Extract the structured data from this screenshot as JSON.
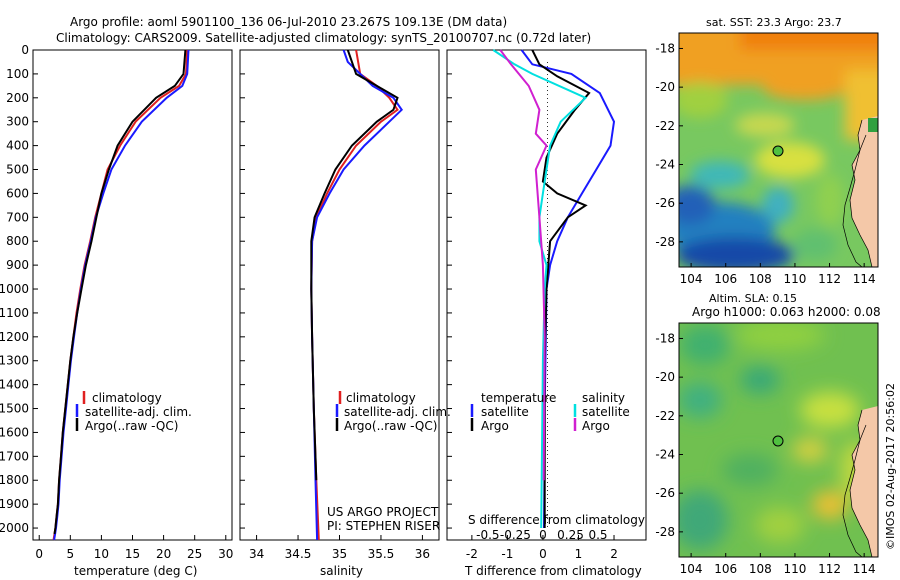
{
  "header": {
    "title_line1": "Argo profile: aoml 5901100_136 06-Jul-2010 23.267S 109.13E (DM data)",
    "title_line2": "Climatology: CARS2009. Satellite-adjusted climatology: synTS_20100707.nc (0.72d later)"
  },
  "colors": {
    "climatology": "#e02020",
    "satellite": "#1a1aff",
    "argo": "#000000",
    "sal_satellite": "#00e0e0",
    "sal_argo": "#d020d0"
  },
  "chart_data": [
    {
      "type": "line",
      "name": "temperature-profile",
      "xlabel": "temperature (deg C)",
      "ylabel": "",
      "xlim": [
        -1,
        31
      ],
      "ylim": [
        2050,
        0
      ],
      "xticks": [
        0,
        5,
        10,
        15,
        20,
        25,
        30
      ],
      "yticks": [
        0,
        100,
        200,
        300,
        400,
        500,
        600,
        700,
        800,
        900,
        1000,
        1100,
        1200,
        1300,
        1400,
        1500,
        1600,
        1700,
        1800,
        1900,
        2000
      ],
      "legend": {
        "placement": "bottom-center",
        "entries": [
          "climatology",
          "satellite-adj. clim.",
          "Argo(..raw -QC)"
        ]
      },
      "series": [
        {
          "name": "climatology",
          "color": "#e02020",
          "x": [
            23.8,
            23.6,
            22.5,
            19.5,
            15.5,
            13.0,
            11.0,
            10.0,
            9.0,
            8.2,
            7.3,
            6.6,
            6.0,
            5.5,
            5.0,
            4.6,
            4.2,
            3.8,
            3.5,
            3.2,
            3.0,
            2.8,
            2.6,
            2.45,
            2.3
          ],
          "y": [
            0,
            100,
            150,
            200,
            300,
            400,
            500,
            600,
            700,
            800,
            900,
            1000,
            1100,
            1200,
            1300,
            1400,
            1500,
            1600,
            1700,
            1800,
            1900,
            1950,
            2000,
            2025,
            2050
          ]
        },
        {
          "name": "satellite-adj. clim.",
          "color": "#1a1aff",
          "x": [
            24.0,
            23.8,
            23.0,
            20.5,
            16.5,
            13.8,
            11.6,
            10.3,
            9.1,
            8.3,
            7.4,
            6.7,
            6.1,
            5.6,
            5.1,
            4.7,
            4.3,
            3.9,
            3.6,
            3.3,
            3.1,
            2.9,
            2.7,
            2.55,
            2.4
          ],
          "y": [
            0,
            100,
            150,
            200,
            300,
            400,
            500,
            600,
            700,
            800,
            900,
            1000,
            1100,
            1200,
            1300,
            1400,
            1500,
            1600,
            1700,
            1800,
            1900,
            1950,
            2000,
            2025,
            2050
          ]
        },
        {
          "name": "Argo(..raw -QC)",
          "color": "#000000",
          "x": [
            23.5,
            23.2,
            21.8,
            18.8,
            15.0,
            12.6,
            11.2,
            10.0,
            9.2,
            8.4,
            7.5,
            6.8,
            6.1,
            5.5,
            5.0,
            4.6,
            4.2,
            3.8,
            3.5,
            3.2,
            3.0,
            2.8,
            2.6,
            2.45
          ],
          "y": [
            0,
            100,
            150,
            200,
            300,
            400,
            500,
            600,
            700,
            800,
            900,
            1000,
            1100,
            1200,
            1300,
            1400,
            1500,
            1600,
            1700,
            1800,
            1900,
            1950,
            2000,
            2025
          ]
        }
      ]
    },
    {
      "type": "line",
      "name": "salinity-profile",
      "xlabel": "salinity",
      "ylabel": "",
      "xlim": [
        33.8,
        36.2
      ],
      "ylim": [
        2050,
        0
      ],
      "xticks": [
        34,
        34.5,
        35,
        35.5,
        36
      ],
      "xtick_labels": [
        "34",
        "34.5",
        "35",
        "35.5",
        "36"
      ],
      "legend": {
        "placement": "bottom-center",
        "entries": [
          "climatology",
          "satellite-adj. clim.",
          "Argo(..raw -QC)"
        ]
      },
      "annotation": [
        "US ARGO PROJECT",
        "PI: STEPHEN RISER"
      ],
      "series": [
        {
          "name": "climatology",
          "color": "#e02020",
          "x": [
            35.2,
            35.25,
            35.45,
            35.6,
            35.7,
            35.5,
            35.2,
            35.0,
            34.85,
            34.72,
            34.67,
            34.66,
            34.67,
            34.69,
            34.72,
            34.75
          ],
          "y": [
            0,
            100,
            150,
            200,
            250,
            300,
            400,
            500,
            600,
            700,
            800,
            1000,
            1200,
            1500,
            1800,
            2050
          ]
        },
        {
          "name": "satellite-adj. clim.",
          "color": "#1a1aff",
          "x": [
            35.05,
            35.1,
            35.4,
            35.65,
            35.75,
            35.6,
            35.3,
            35.05,
            34.88,
            34.73,
            34.67,
            34.66,
            34.67,
            34.69,
            34.71,
            34.73
          ],
          "y": [
            0,
            50,
            150,
            200,
            250,
            300,
            400,
            500,
            600,
            700,
            800,
            1000,
            1200,
            1500,
            1800,
            2050
          ]
        },
        {
          "name": "Argo(..raw -QC)",
          "color": "#000000",
          "x": [
            35.1,
            35.2,
            35.45,
            35.7,
            35.65,
            35.45,
            35.15,
            34.95,
            34.82,
            34.7,
            34.66,
            34.66,
            34.67,
            34.69,
            34.72
          ],
          "y": [
            0,
            100,
            150,
            200,
            250,
            300,
            400,
            500,
            600,
            700,
            800,
            1000,
            1200,
            1500,
            1800
          ]
        }
      ]
    },
    {
      "type": "line",
      "name": "difference-profile",
      "xlabel": "T difference from climatology",
      "xlabel_top": "S difference from climatology",
      "ylabel": "",
      "xlim": [
        -2.7,
        2.9
      ],
      "ylim": [
        2050,
        0
      ],
      "xticks": [
        -2,
        -1,
        0,
        1,
        2
      ],
      "sticks": [
        -0.5,
        -0.25,
        0,
        0.25,
        0.5
      ],
      "legend": {
        "placement": "bottom-center",
        "headers": [
          "temperature",
          "salinity"
        ],
        "entries": [
          "satellite",
          "Argo",
          "satellite",
          "Argo"
        ]
      },
      "series": [
        {
          "name": "temperature satellite",
          "color": "#1a1aff",
          "x": [
            -0.6,
            -0.3,
            0.8,
            1.6,
            2.0,
            1.9,
            1.5,
            1.1,
            0.7,
            0.4,
            0.2,
            0.1,
            0.08,
            0.05,
            0.04,
            0.03
          ],
          "y": [
            0,
            60,
            100,
            180,
            300,
            400,
            500,
            600,
            700,
            800,
            900,
            1000,
            1200,
            1500,
            1800,
            2000
          ]
        },
        {
          "name": "temperature Argo",
          "color": "#000000",
          "x": [
            -0.3,
            -0.1,
            0.4,
            1.3,
            0.9,
            0.4,
            0.1,
            0.0,
            0.4,
            1.2,
            0.7,
            0.2,
            0.1,
            0.05,
            0.05,
            0.05
          ],
          "y": [
            0,
            60,
            110,
            180,
            250,
            350,
            450,
            550,
            600,
            650,
            700,
            800,
            1000,
            1300,
            1700,
            2000
          ]
        },
        {
          "name": "salinity satellite",
          "color": "#00e0e0",
          "x": [
            -1.4,
            -0.8,
            -0.3,
            1.2,
            0.5,
            0.2,
            0.1,
            0.0,
            -0.1,
            -0.1,
            0.1,
            0.05,
            0.0,
            -0.05
          ],
          "y": [
            0,
            60,
            100,
            200,
            300,
            400,
            500,
            600,
            700,
            800,
            900,
            1000,
            1300,
            2000
          ]
        },
        {
          "name": "salinity Argo",
          "color": "#d020d0",
          "x": [
            -1.2,
            -0.9,
            -0.4,
            -0.1,
            -0.2,
            0.1,
            -0.2,
            -0.1,
            0.0,
            0.05,
            0.02
          ],
          "y": [
            0,
            60,
            150,
            250,
            350,
            400,
            500,
            700,
            900,
            1200,
            1800
          ]
        }
      ]
    },
    {
      "type": "heatmap",
      "name": "sst-map",
      "title": "sat. SST: 23.3  Argo: 23.7",
      "xlim": [
        103.3,
        114.8
      ],
      "ylim": [
        -29.3,
        -17.2
      ],
      "xticks": [
        104,
        106,
        108,
        110,
        112,
        114
      ],
      "yticks": [
        -18,
        -20,
        -22,
        -24,
        -26,
        -28
      ],
      "marker": {
        "lon": 109.13,
        "lat": -23.267
      }
    },
    {
      "type": "heatmap",
      "name": "sla-map",
      "title_line1": "Altim. SLA: 0.15",
      "title_line2": "Argo h1000: 0.063  h2000: 0.08",
      "xlim": [
        103.3,
        114.8
      ],
      "ylim": [
        -29.3,
        -17.2
      ],
      "xticks": [
        104,
        106,
        108,
        110,
        112,
        114
      ],
      "yticks": [
        -18,
        -20,
        -22,
        -24,
        -26,
        -28
      ],
      "marker": {
        "lon": 109.13,
        "lat": -23.267
      }
    }
  ],
  "footer": {
    "imos_stamp": "©IMOS 02-Aug-2017 20:56:02"
  }
}
